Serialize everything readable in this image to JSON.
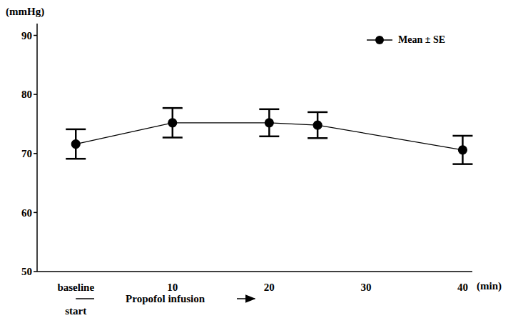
{
  "chart_data": {
    "type": "line",
    "x_label": "(min)",
    "y_label": "(mmHg)",
    "annotations": [
      "Propofol infusion",
      "start"
    ],
    "x": [
      0,
      10,
      20,
      25,
      40
    ],
    "xlim": [
      -4,
      41
    ],
    "xticks": [
      {
        "value": 0,
        "label": "baseline"
      },
      10,
      20,
      30,
      40
    ],
    "ylim": [
      50,
      92
    ],
    "yticks": [
      50,
      60,
      70,
      80,
      90
    ],
    "grid": false,
    "legend": "upper right",
    "series": [
      {
        "name": "Mean ± SE",
        "color": "#000000",
        "marker": "circle",
        "values": [
          71.6,
          75.2,
          75.2,
          74.8,
          70.6
        ],
        "se": [
          2.5,
          2.5,
          2.3,
          2.2,
          2.4
        ]
      }
    ]
  }
}
